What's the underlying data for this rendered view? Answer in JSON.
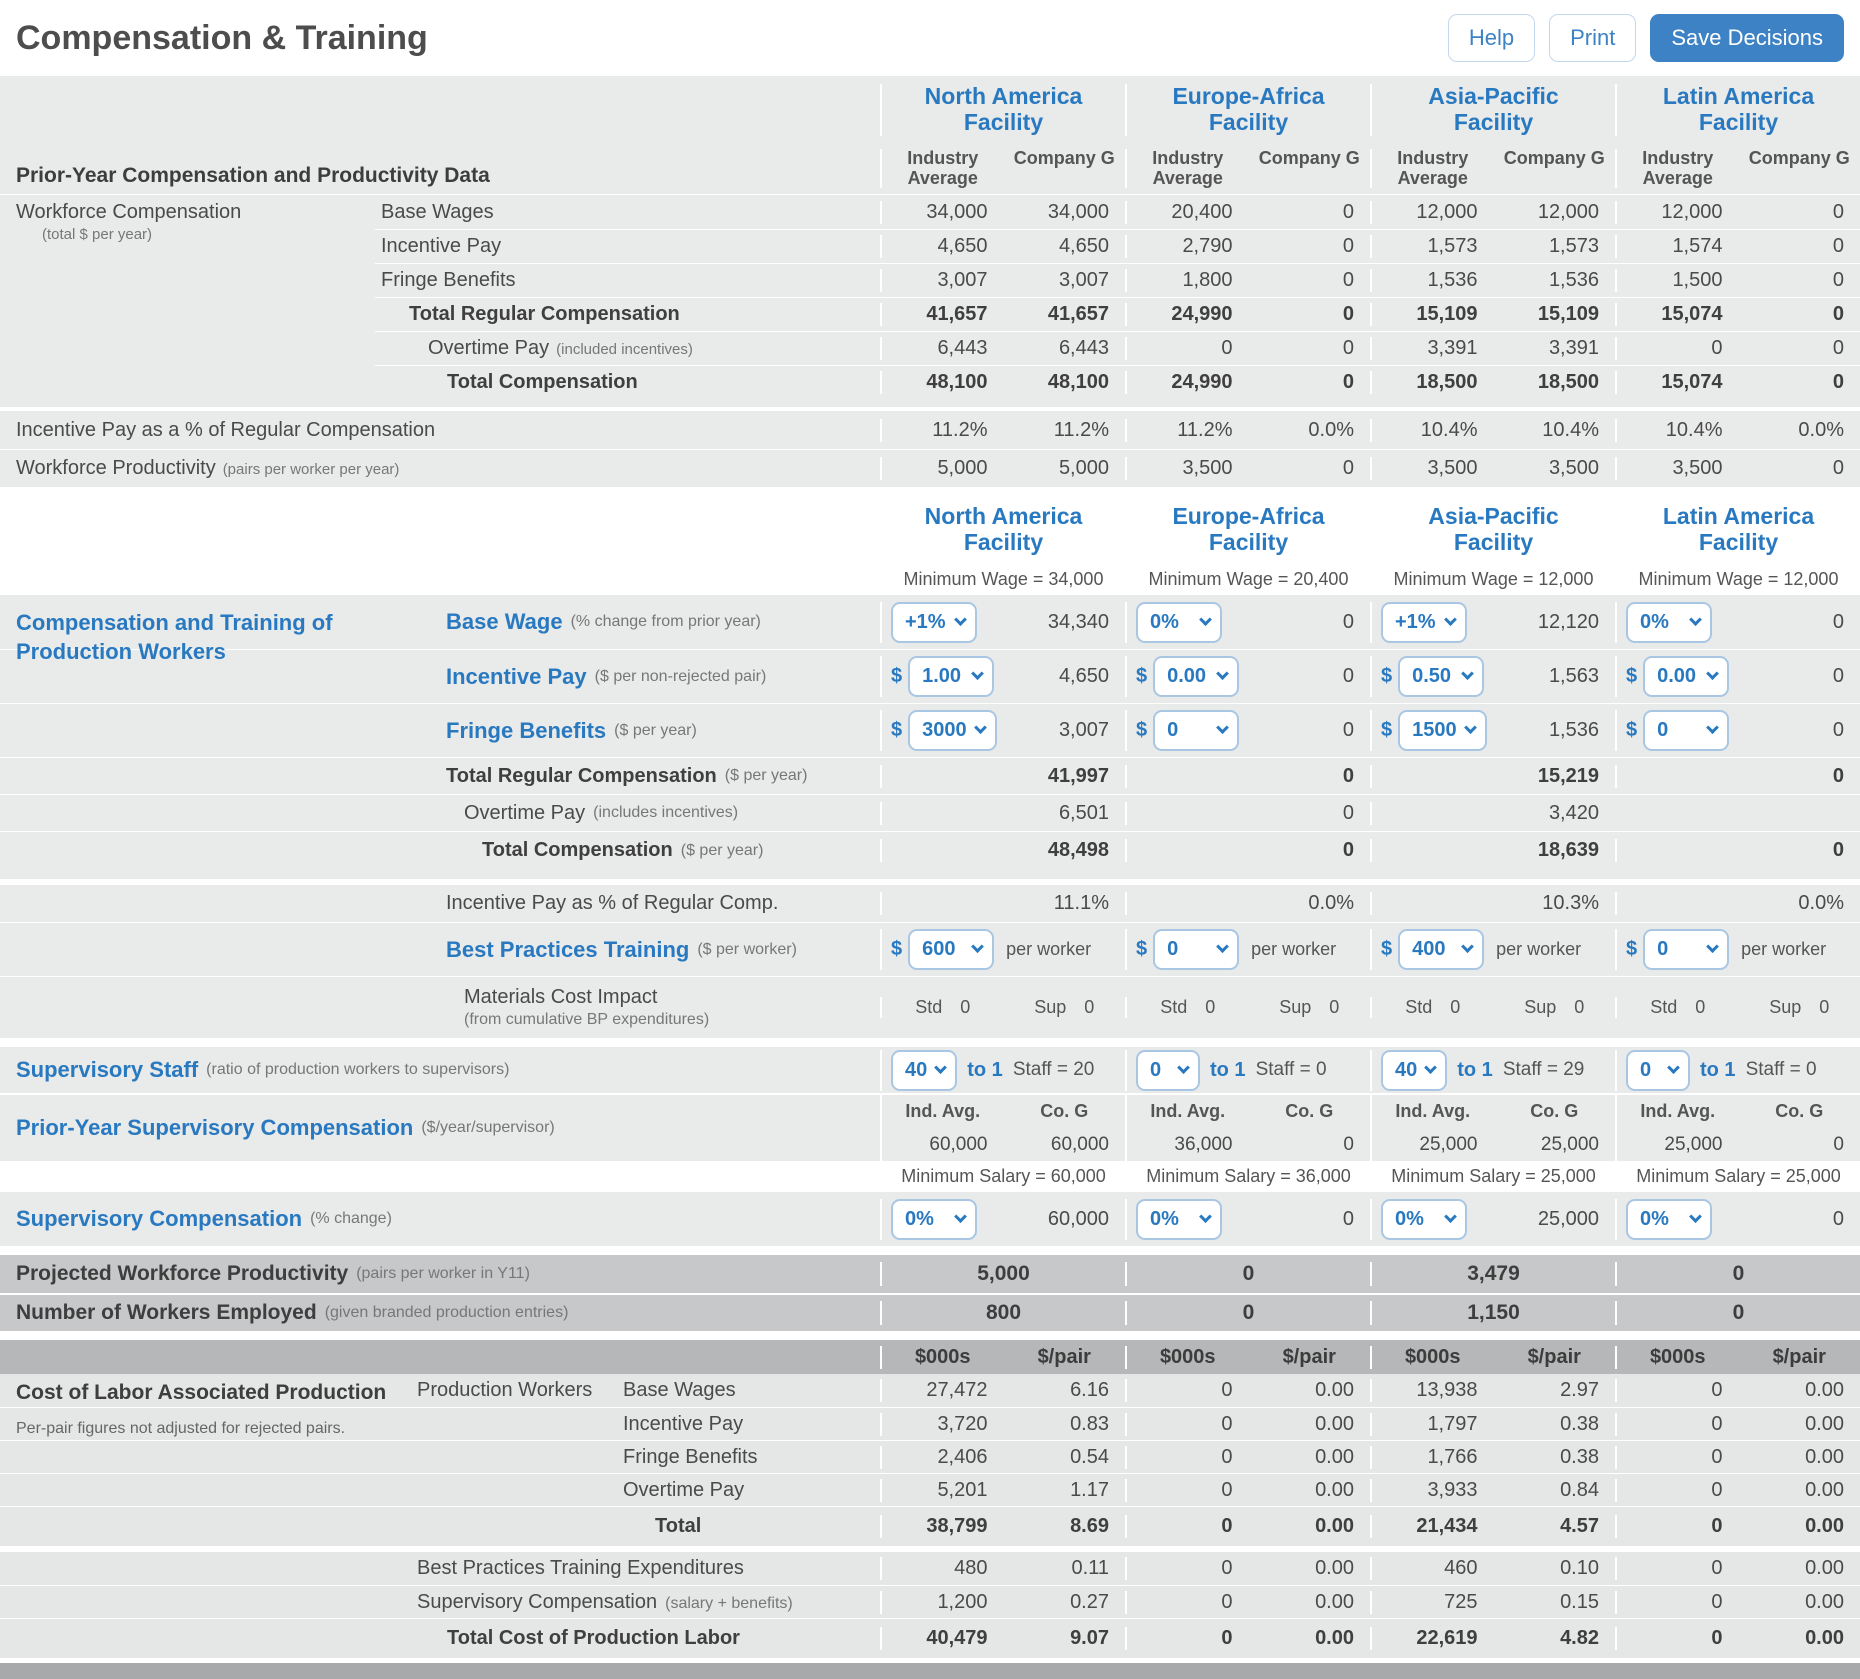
{
  "header": {
    "title": "Compensation & Training",
    "help": "Help",
    "print": "Print",
    "save": "Save Decisions"
  },
  "facilities": [
    "North America Facility",
    "Europe-Africa Facility",
    "Asia-Pacific Facility",
    "Latin America Facility"
  ],
  "prior": {
    "title": "Prior-Year Compensation and Productivity Data",
    "col_industry": "Industry Average",
    "col_company": "Company G",
    "group_label": "Workforce Compensation",
    "group_sub": "(total $ per year)",
    "rows": [
      {
        "label": "Base Wages",
        "values": [
          "34,000",
          "34,000",
          "20,400",
          "0",
          "12,000",
          "12,000",
          "12,000",
          "0"
        ]
      },
      {
        "label": "Incentive Pay",
        "values": [
          "4,650",
          "4,650",
          "2,790",
          "0",
          "1,573",
          "1,573",
          "1,574",
          "0"
        ]
      },
      {
        "label": "Fringe Benefits",
        "values": [
          "3,007",
          "3,007",
          "1,800",
          "0",
          "1,536",
          "1,536",
          "1,500",
          "0"
        ]
      },
      {
        "label": "Total Regular Compensation",
        "values": [
          "41,657",
          "41,657",
          "24,990",
          "0",
          "15,109",
          "15,109",
          "15,074",
          "0"
        ]
      },
      {
        "label": "Overtime Pay",
        "sub": "(included incentives)",
        "values": [
          "6,443",
          "6,443",
          "0",
          "0",
          "3,391",
          "3,391",
          "0",
          "0"
        ]
      },
      {
        "label": "Total Compensation",
        "values": [
          "48,100",
          "48,100",
          "24,990",
          "0",
          "18,500",
          "18,500",
          "15,074",
          "0"
        ]
      }
    ],
    "incentive_pct": {
      "label": "Incentive Pay as a % of Regular Compensation",
      "values": [
        "11.2%",
        "11.2%",
        "11.2%",
        "0.0%",
        "10.4%",
        "10.4%",
        "10.4%",
        "0.0%"
      ]
    },
    "productivity": {
      "label": "Workforce Productivity",
      "sub": "(pairs per worker per year)",
      "values": [
        "5,000",
        "5,000",
        "3,500",
        "0",
        "3,500",
        "3,500",
        "3,500",
        "0"
      ]
    }
  },
  "decisions": {
    "title": "Compensation and Training of Production Workers",
    "min_wages": [
      "Minimum Wage = 34,000",
      "Minimum Wage = 20,400",
      "Minimum Wage = 12,000",
      "Minimum Wage = 12,000"
    ],
    "base_wage": {
      "label": "Base Wage",
      "sub": "(% change from prior year)",
      "cells": [
        {
          "dd": "+1%",
          "value": "34,340"
        },
        {
          "dd": "0%",
          "value": "0"
        },
        {
          "dd": "+1%",
          "value": "12,120"
        },
        {
          "dd": "0%",
          "value": "0"
        }
      ]
    },
    "incentive_pay": {
      "label": "Incentive Pay",
      "sub": "($ per non-rejected pair)",
      "prefix": "$",
      "cells": [
        {
          "dd": "1.00",
          "value": "4,650"
        },
        {
          "dd": "0.00",
          "value": "0"
        },
        {
          "dd": "0.50",
          "value": "1,563"
        },
        {
          "dd": "0.00",
          "value": "0"
        }
      ]
    },
    "fringe_benefits": {
      "label": "Fringe Benefits",
      "sub": "($ per year)",
      "prefix": "$",
      "cells": [
        {
          "dd": "3000",
          "value": "3,007"
        },
        {
          "dd": "0",
          "value": "0"
        },
        {
          "dd": "1500",
          "value": "1,536"
        },
        {
          "dd": "0",
          "value": "0"
        }
      ]
    },
    "total_regular": {
      "label": "Total Regular Compensation",
      "sub": "($ per year)",
      "values": [
        "41,997",
        "0",
        "15,219",
        "0"
      ]
    },
    "overtime": {
      "label": "Overtime Pay",
      "sub": "(includes incentives)",
      "values": [
        "6,501",
        "0",
        "3,420",
        ""
      ]
    },
    "total_comp": {
      "label": "Total Compensation",
      "sub": "($ per year)",
      "values": [
        "48,498",
        "0",
        "18,639",
        "0"
      ]
    },
    "incentive_pct": {
      "label": "Incentive Pay as % of Regular Comp.",
      "values": [
        "11.1%",
        "0.0%",
        "10.3%",
        "0.0%"
      ]
    },
    "bp_training": {
      "label": "Best Practices Training",
      "sub": "($ per worker)",
      "prefix": "$",
      "unit": "per worker",
      "cells": [
        {
          "dd": "600"
        },
        {
          "dd": "0"
        },
        {
          "dd": "400"
        },
        {
          "dd": "0"
        }
      ]
    },
    "materials": {
      "label": "Materials Cost Impact",
      "sub": "(from cumulative BP expenditures)",
      "std_label": "Std",
      "sup_label": "Sup",
      "cells": [
        {
          "std": "0",
          "sup": "0"
        },
        {
          "std": "0",
          "sup": "0"
        },
        {
          "std": "0",
          "sup": "0"
        },
        {
          "std": "0",
          "sup": "0"
        }
      ]
    }
  },
  "supervisory": {
    "staff": {
      "label": "Supervisory Staff",
      "sub": "(ratio of production workers to supervisors)",
      "ratio_suffix": "to 1",
      "cells": [
        {
          "dd": "40",
          "staff": "Staff = 20"
        },
        {
          "dd": "0",
          "staff": "Staff = 0"
        },
        {
          "dd": "40",
          "staff": "Staff = 29"
        },
        {
          "dd": "0",
          "staff": "Staff = 0"
        }
      ]
    },
    "prior_comp": {
      "label": "Prior-Year Supervisory Compensation",
      "sub": "($/year/supervisor)",
      "col_ind": "Ind. Avg.",
      "col_co": "Co. G",
      "values": [
        "60,000",
        "60,000",
        "36,000",
        "0",
        "25,000",
        "25,000",
        "25,000",
        "0"
      ]
    },
    "min_salaries": [
      "Minimum Salary = 60,000",
      "Minimum Salary = 36,000",
      "Minimum Salary = 25,000",
      "Minimum Salary = 25,000"
    ],
    "comp_change": {
      "label": "Supervisory Compensation",
      "sub": "(% change)",
      "cells": [
        {
          "dd": "0%",
          "value": "60,000"
        },
        {
          "dd": "0%",
          "value": "0"
        },
        {
          "dd": "0%",
          "value": "25,000"
        },
        {
          "dd": "0%",
          "value": "0"
        }
      ]
    }
  },
  "projected": {
    "productivity": {
      "label": "Projected Workforce Productivity",
      "sub": "(pairs per worker in Y11)",
      "values": [
        "5,000",
        "0",
        "3,479",
        "0"
      ]
    },
    "workers": {
      "label": "Number of Workers Employed",
      "sub": "(given branded production entries)",
      "values": [
        "800",
        "0",
        "1,150",
        "0"
      ]
    }
  },
  "cost": {
    "col_thousands": "$000s",
    "col_perpair": "$/pair",
    "title": "Cost of Labor Associated Production",
    "note": "Per-pair figures not adjusted for rejected pairs.",
    "group_label": "Production Workers",
    "rows": [
      {
        "label": "Base Wages",
        "values": [
          "27,472",
          "6.16",
          "0",
          "0.00",
          "13,938",
          "2.97",
          "0",
          "0.00"
        ]
      },
      {
        "label": "Incentive Pay",
        "values": [
          "3,720",
          "0.83",
          "0",
          "0.00",
          "1,797",
          "0.38",
          "0",
          "0.00"
        ]
      },
      {
        "label": "Fringe Benefits",
        "values": [
          "2,406",
          "0.54",
          "0",
          "0.00",
          "1,766",
          "0.38",
          "0",
          "0.00"
        ]
      },
      {
        "label": "Overtime Pay",
        "values": [
          "5,201",
          "1.17",
          "0",
          "0.00",
          "3,933",
          "0.84",
          "0",
          "0.00"
        ]
      },
      {
        "label": "Total",
        "values": [
          "38,799",
          "8.69",
          "0",
          "0.00",
          "21,434",
          "4.57",
          "0",
          "0.00"
        ]
      }
    ],
    "bp_expenditures": {
      "label": "Best Practices Training Expenditures",
      "values": [
        "480",
        "0.11",
        "0",
        "0.00",
        "460",
        "0.10",
        "0",
        "0.00"
      ]
    },
    "sup_comp": {
      "label": "Supervisory Compensation",
      "sub": "(salary + benefits)",
      "values": [
        "1,200",
        "0.27",
        "0",
        "0.00",
        "725",
        "0.15",
        "0",
        "0.00"
      ]
    },
    "total": {
      "label": "Total Cost of Production Labor",
      "values": [
        "40,479",
        "9.07",
        "0",
        "0.00",
        "22,619",
        "4.82",
        "0",
        "0.00"
      ]
    }
  }
}
